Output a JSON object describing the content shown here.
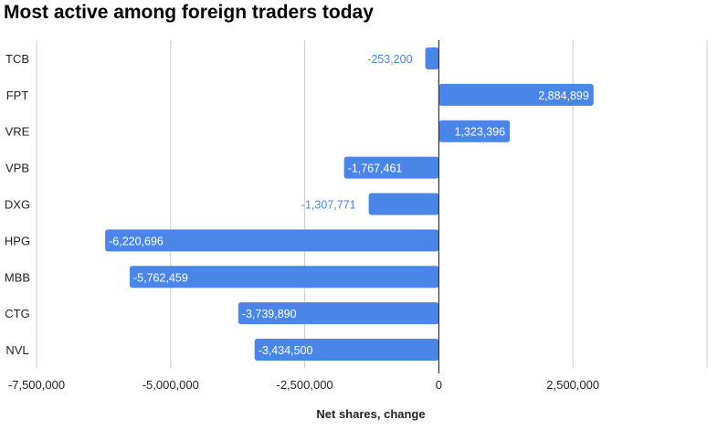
{
  "chart_data": {
    "type": "bar",
    "orientation": "horizontal",
    "title": "Most active among foreign traders today",
    "xlabel": "Net shares, change",
    "ylabel": "",
    "categories": [
      "TCB",
      "FPT",
      "VRE",
      "VPB",
      "DXG",
      "HPG",
      "MBB",
      "CTG",
      "NVL"
    ],
    "values": [
      -253200,
      2884899,
      1323396,
      -1767461,
      -1307771,
      -6220696,
      -5762459,
      -3739890,
      -3434500
    ],
    "value_labels": [
      "-253,200",
      "2,884,899",
      "1,323,396",
      "-1,767,461",
      "-1,307,771",
      "-6,220,696",
      "-5,762,459",
      "-3,739,890",
      "-3,434,500"
    ],
    "xlim": [
      -7500000,
      5000000
    ],
    "x_ticks": [
      -7500000,
      -5000000,
      -2500000,
      0,
      2500000,
      5000000
    ],
    "x_tick_labels": [
      "-7,500,000",
      "-5,000,000",
      "-2,500,000",
      "0",
      "2,500,000",
      ""
    ],
    "grid": "vertical",
    "legend": "none",
    "bar_color": "#4a86e8",
    "bar_label_color_inside": "#ffffff",
    "bar_label_color_outside": "#4a86e8",
    "grid_color": "#cccccc",
    "zero_line_color": "#333333"
  }
}
